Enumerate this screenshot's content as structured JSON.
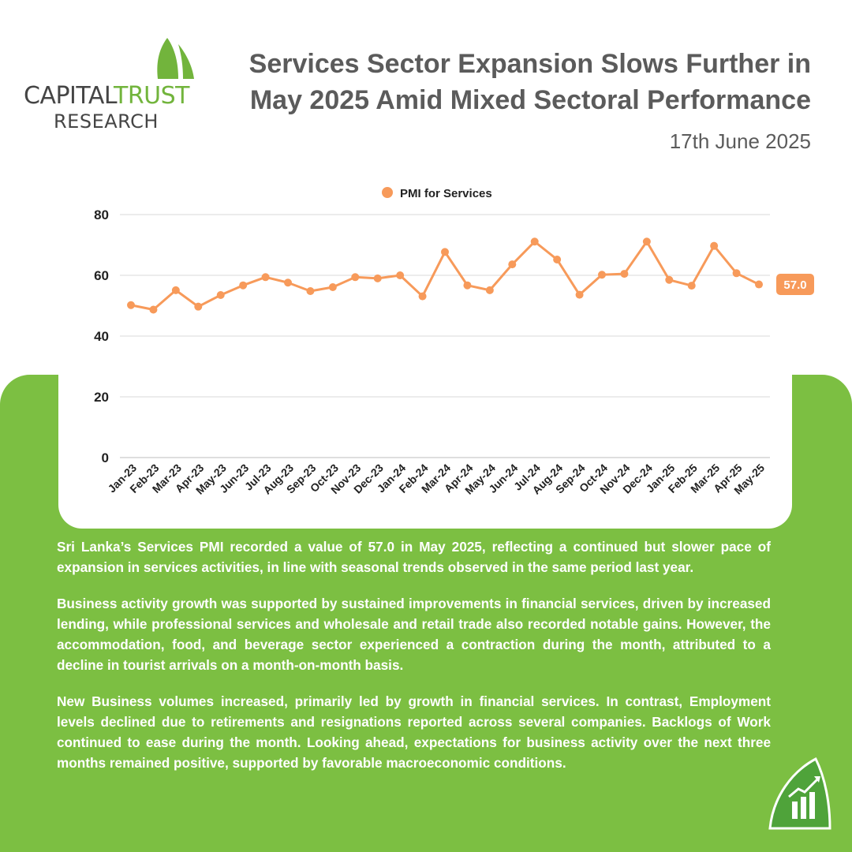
{
  "header": {
    "logo": {
      "line1_a": "CAPITAL",
      "line1_b": "TRUST",
      "line2": "RESEARCH"
    },
    "title": "Services Sector Expansion Slows Further in May 2025 Amid Mixed Sectoral Performance",
    "date": "17th June 2025"
  },
  "colors": {
    "accent_green": "#7cbf42",
    "series_orange": "#f79a5a",
    "title_gray": "#5b5b5b"
  },
  "chart_data": {
    "type": "line",
    "title": "",
    "xlabel": "",
    "ylabel": "",
    "ylim": [
      0,
      80
    ],
    "yticks": [
      0,
      20,
      40,
      60,
      80
    ],
    "grid": true,
    "legend_position": "top-center",
    "categories": [
      "Jan-23",
      "Feb-23",
      "Mar-23",
      "Apr-23",
      "May-23",
      "Jun-23",
      "Jul-23",
      "Aug-23",
      "Sep-23",
      "Oct-23",
      "Nov-23",
      "Dec-23",
      "Jan-24",
      "Feb-24",
      "Mar-24",
      "Apr-24",
      "May-24",
      "Jun-24",
      "Jul-24",
      "Aug-24",
      "Sep-24",
      "Oct-24",
      "Nov-24",
      "Dec-24",
      "Jan-25",
      "Feb-25",
      "Mar-25",
      "Apr-25",
      "May-25"
    ],
    "series": [
      {
        "name": "PMI for Services",
        "color": "#f79a5a",
        "values": [
          50.2,
          48.7,
          55.1,
          49.7,
          53.5,
          56.7,
          59.4,
          57.6,
          54.8,
          56.1,
          59.4,
          59.0,
          60.0,
          53.1,
          67.7,
          56.7,
          55.1,
          63.6,
          71.1,
          65.2,
          53.6,
          60.2,
          60.5,
          71.1,
          58.5,
          56.6,
          69.7,
          60.7,
          57.0
        ]
      }
    ],
    "last_value_label": "57.0"
  },
  "body": {
    "p1": "Sri Lanka’s Services PMI recorded a value of 57.0 in May 2025, reflecting a continued but slower pace of expansion in services activities, in line with seasonal trends observed in the same period last year.",
    "p2": "Business activity growth was supported by sustained improvements in financial services, driven by increased lending, while professional services and wholesale and retail trade also recorded notable gains. However, the accommodation, food, and beverage sector experienced a contraction during the month, attributed to a decline in tourist arrivals on a month-on-month basis.",
    "p3": "New Business volumes increased, primarily led by growth in financial services. In contrast, Employment levels declined due to retirements and resignations reported across several companies. Backlogs of Work continued to ease during the month. Looking ahead, expectations for business activity over the next three months remained positive, supported by favorable macroeconomic conditions."
  },
  "icons": {
    "logo_mark": "sail-logo-icon",
    "corner": "growth-chart-sail-icon"
  }
}
